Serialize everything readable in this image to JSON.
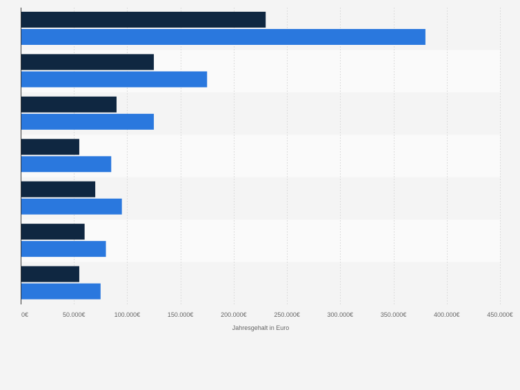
{
  "chart_data": {
    "type": "bar",
    "orientation": "horizontal",
    "categories": [
      "",
      "",
      "",
      "",
      "",
      "",
      ""
    ],
    "series": [
      {
        "color": "#0f2741",
        "values": [
          230000,
          125000,
          90000,
          55000,
          70000,
          60000,
          55000
        ]
      },
      {
        "color": "#2a78de",
        "values": [
          380000,
          175000,
          125000,
          85000,
          95000,
          80000,
          75000
        ]
      }
    ],
    "xlabel": "Jahresgehalt in Euro",
    "xlim": [
      0,
      450000
    ],
    "xticks": [
      0,
      50000,
      100000,
      150000,
      200000,
      250000,
      300000,
      350000,
      400000,
      450000
    ],
    "xtick_labels": [
      "0€",
      "50.000€",
      "100.000€",
      "150.000€",
      "200.000€",
      "250.000€",
      "300.000€",
      "350.000€",
      "400.000€",
      "450.000€"
    ],
    "grid": true,
    "legend": "none"
  }
}
